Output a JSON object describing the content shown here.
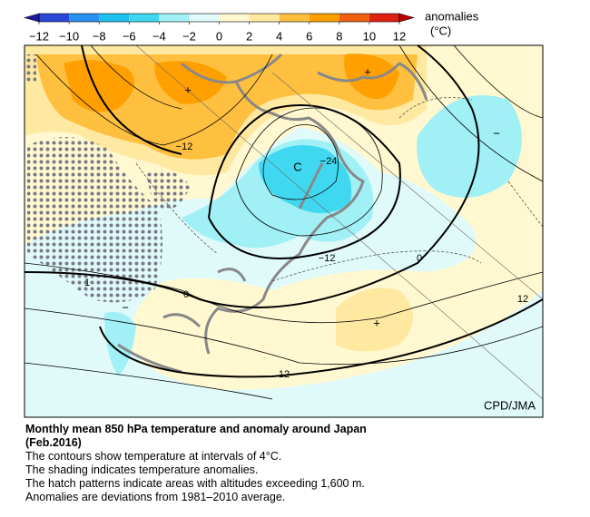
{
  "colorbar": {
    "label": "anomalies",
    "unit": "(°C)",
    "ticks": [
      {
        "value": -12,
        "label": "−12"
      },
      {
        "value": -10,
        "label": "−10"
      },
      {
        "value": -8,
        "label": "−8"
      },
      {
        "value": -6,
        "label": "−6"
      },
      {
        "value": -4,
        "label": "−4"
      },
      {
        "value": -2,
        "label": "−2"
      },
      0,
      2,
      4,
      6,
      8,
      10,
      12
    ],
    "colors": [
      "#2a47d8",
      "#2a90f0",
      "#1ec0f0",
      "#40d8f0",
      "#a0f0f5",
      "#e0fafa",
      "#fff8d0",
      "#ffe8a0",
      "#ffc040",
      "#ffa000",
      "#f06010",
      "#e02010"
    ]
  },
  "map": {
    "contour_labels": [
      "−12",
      "−24",
      "−12",
      "0",
      "12",
      "0",
      "1",
      "12"
    ],
    "markers": [
      "+",
      "+",
      "−",
      "+",
      "−",
      "C"
    ],
    "credit": "CPD/JMA"
  },
  "caption": {
    "title": "Monthly mean 850 hPa temperature and anomaly around Japan",
    "date": "(Feb.2016)",
    "lines": [
      "The contours show temperature at intervals of 4°C.",
      "The shading indicates temperature anomalies.",
      "The hatch patterns indicate areas with altitudes exceeding 1,600 m.",
      "Anomalies are deviations from 1981–2010 average."
    ]
  }
}
